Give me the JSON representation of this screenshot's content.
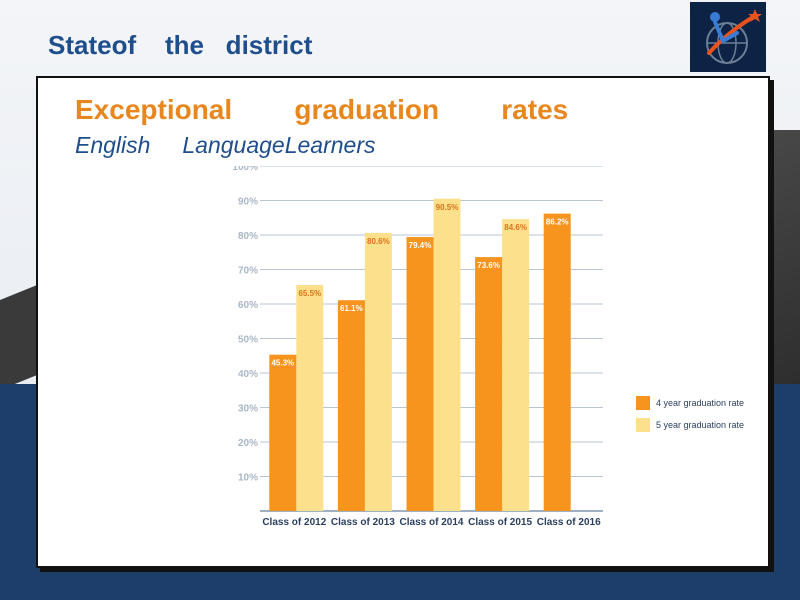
{
  "slide": {
    "title": "Stateof    the   district"
  },
  "panel": {
    "heading": "Exceptional        graduation        rates",
    "subheading": "English     LanguageLearners"
  },
  "colors": {
    "title_blue": "#1f4e8c",
    "heading_orange": "#e8871e",
    "bar_4yr": "#f7941d",
    "bar_5yr": "#fde08b",
    "background_navy": "#1d3d6b"
  },
  "chart_data": {
    "type": "bar",
    "categories": [
      "Class of 2012",
      "Class of 2013",
      "Class of 2014",
      "Class of 2015",
      "Class of 2016"
    ],
    "series": [
      {
        "name": "4 year graduation rate",
        "values": [
          45.3,
          61.1,
          79.4,
          73.6,
          86.2
        ],
        "labels": [
          "45.3%",
          "61.1%",
          "79.4%",
          "73.6%",
          "86.2%"
        ]
      },
      {
        "name": "5 year graduation rate",
        "values": [
          65.5,
          80.6,
          90.5,
          84.6,
          null
        ],
        "labels": [
          "65.5%",
          "80.6%",
          "90.5%",
          "84.6%",
          ""
        ]
      }
    ],
    "y_ticks": [
      "10%",
      "20%",
      "30%",
      "40%",
      "50%",
      "60%",
      "70%",
      "80%",
      "90%",
      "100%"
    ],
    "ylim": [
      0,
      100
    ],
    "grid": true,
    "legend_position": "right"
  }
}
